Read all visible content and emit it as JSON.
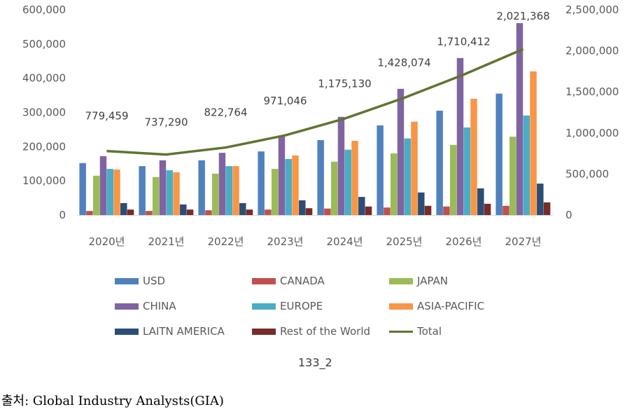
{
  "chart_data": {
    "type": "bar",
    "title": "",
    "xlabel": "",
    "ylabel": "",
    "categories": [
      "2020년",
      "2021년",
      "2022년",
      "2023년",
      "2024년",
      "2025년",
      "2026년",
      "2027년"
    ],
    "ylim": [
      0,
      600000
    ],
    "y_ticks": [
      "0",
      "100,000",
      "200,000",
      "300,000",
      "400,000",
      "500,000",
      "600,000"
    ],
    "y2lim": [
      0,
      2500000
    ],
    "y2_ticks": [
      "0",
      "500,000",
      "1,000,000",
      "1,500,000",
      "2,000,000",
      "2,500,000"
    ],
    "grid": false,
    "legend_position": "bottom",
    "series": [
      {
        "name": "USD",
        "color": "#4f81bd",
        "values": [
          152000,
          143000,
          160000,
          186000,
          219000,
          262000,
          305000,
          355000
        ]
      },
      {
        "name": "CANADA",
        "color": "#c0504d",
        "values": [
          12000,
          12000,
          14000,
          16000,
          19000,
          22000,
          25000,
          27000
        ]
      },
      {
        "name": "JAPAN",
        "color": "#9bbb59",
        "values": [
          115000,
          111000,
          121000,
          135000,
          156000,
          180000,
          205000,
          229000
        ]
      },
      {
        "name": "CHINA",
        "color": "#8064a2",
        "values": [
          172000,
          160000,
          182000,
          229000,
          287000,
          369000,
          459000,
          561000
        ]
      },
      {
        "name": "EUROPE",
        "color": "#4bacc6",
        "values": [
          135000,
          131000,
          143000,
          164000,
          191000,
          224000,
          256000,
          291000
        ]
      },
      {
        "name": "ASIA-PACIFIC",
        "color": "#f79646",
        "values": [
          133000,
          125000,
          143000,
          174000,
          217000,
          273000,
          340000,
          420000
        ]
      },
      {
        "name": "LAITN AMERICA",
        "color": "#2c4d75",
        "values": [
          35000,
          31000,
          35000,
          43000,
          53000,
          66000,
          78000,
          92000
        ]
      },
      {
        "name": "Rest of the World",
        "color": "#772c2a",
        "values": [
          16000,
          16000,
          16000,
          20000,
          25000,
          27000,
          33000,
          37000
        ]
      }
    ],
    "line_series": {
      "name": "Total",
      "color": "#5f7530",
      "axis": "secondary",
      "values": [
        779459,
        737290,
        822764,
        971046,
        1175130,
        1428074,
        1710412,
        2021368
      ],
      "labels": [
        "779,459",
        "737,290",
        "822,764",
        "971,046",
        "1,175,130",
        "1,428,074",
        "1,710,412",
        "2,021,368"
      ]
    }
  },
  "caption": "133_2",
  "source": "출처: Global Industry Analysts(GIA)"
}
